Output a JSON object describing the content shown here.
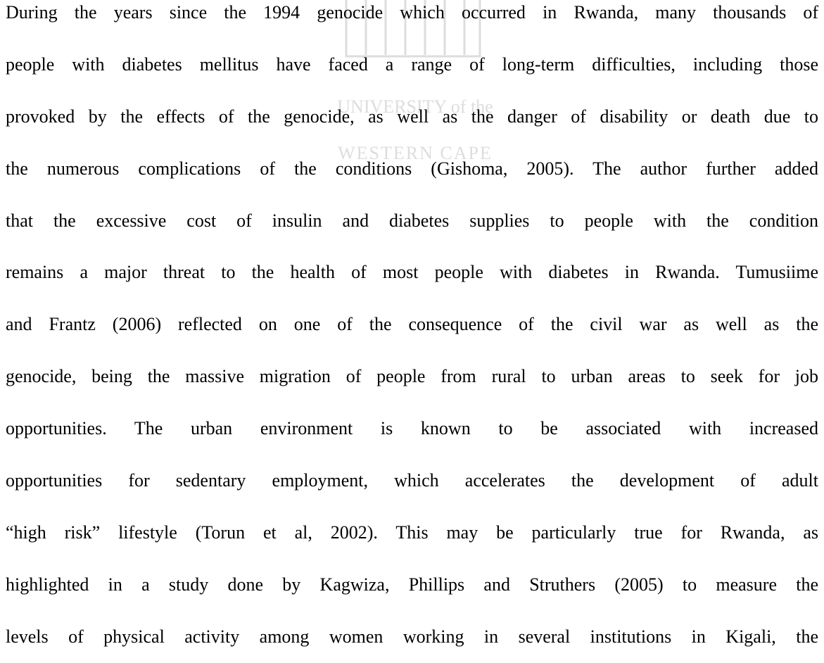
{
  "watermark": {
    "line1": "UNIVERSITY of the",
    "line2": "WESTERN CAPE"
  },
  "paragraph": {
    "lines": [
      "During the years since the 1994 genocide which occurred in Rwanda, many thousands of",
      "people with diabetes mellitus have faced a range of long-term difficulties, including those",
      "provoked by the effects of the genocide, as well as the danger of disability or death due to",
      "the numerous complications of the conditions (Gishoma, 2005). The author further added",
      "that the excessive cost of insulin and diabetes supplies to people with the condition",
      "remains a major threat to the health of most people with diabetes in Rwanda. Tumusiime",
      "and Frantz (2006) reflected on one of the consequence of the civil war as well as the",
      "genocide, being the massive migration of people from rural to urban areas to seek for job",
      "opportunities. The urban environment is known to be associated with increased",
      "opportunities for sedentary employment, which accelerates the development of adult",
      "“high risk” lifestyle (Torun et al, 2002). This may be particularly true for Rwanda, as",
      "highlighted in a study done by Kagwiza, Phillips and Struthers (2005) to measure the",
      "levels of physical activity among women working in several institutions in Kigali, the"
    ]
  }
}
